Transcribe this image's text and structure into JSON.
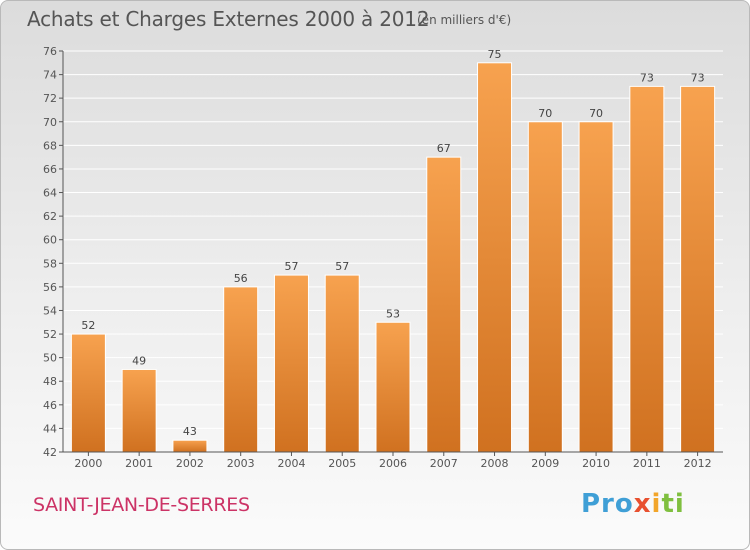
{
  "header": {
    "title": "Achats et Charges Externes 2000 à 2012",
    "unit": "(en milliers d'€)"
  },
  "footer": {
    "commune": "SAINT-JEAN-DE-SERRES",
    "logo": [
      "Pro",
      "x",
      "i",
      "ti"
    ]
  },
  "colors": {
    "bar_light": "#f7a24f",
    "bar_dark": "#d07120",
    "commune_text": "#cc3366",
    "axis": "#555555"
  },
  "chart_data": {
    "type": "bar",
    "title": "Achats et Charges Externes 2000 à 2012",
    "subtitle": "(en milliers d'€)",
    "categories": [
      "2000",
      "2001",
      "2002",
      "2003",
      "2004",
      "2005",
      "2006",
      "2007",
      "2008",
      "2009",
      "2010",
      "2011",
      "2012"
    ],
    "values": [
      52,
      49,
      43,
      56,
      57,
      57,
      53,
      67,
      75,
      70,
      70,
      73,
      73
    ],
    "ylim": [
      42,
      76
    ],
    "yticks": [
      42,
      44,
      46,
      48,
      50,
      52,
      54,
      56,
      58,
      60,
      62,
      64,
      66,
      68,
      70,
      72,
      74,
      76
    ],
    "grid": true,
    "legend": "none"
  }
}
